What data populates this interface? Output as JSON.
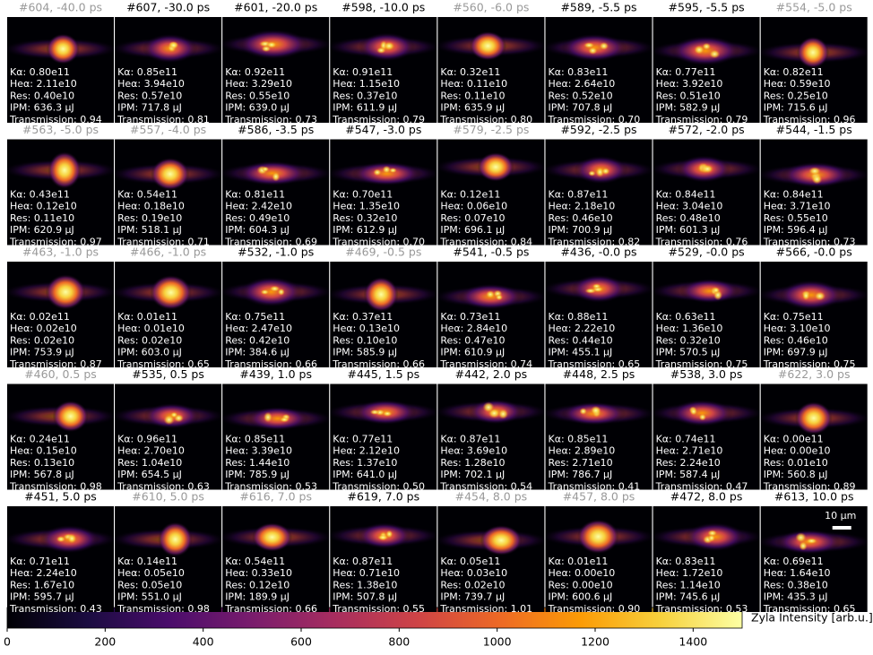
{
  "chart_data": {
    "type": "image-grid",
    "panels": [
      {
        "title": "#604, -40.0 ps",
        "muted": true,
        "lines": [
          "Kα: 0.80e11",
          "Heα: 2.11e10",
          "Res: 0.40e10",
          "IPM: 636.3 μJ",
          "Transmission: 0.94"
        ]
      },
      {
        "title": "#607, -30.0 ps",
        "muted": false,
        "lines": [
          "Kα: 0.85e11",
          "Heα: 3.94e10",
          "Res: 0.57e10",
          "IPM: 717.8 μJ",
          "Transmission: 0.81"
        ]
      },
      {
        "title": "#601, -20.0 ps",
        "muted": false,
        "lines": [
          "Kα: 0.92e11",
          "Heα: 3.29e10",
          "Res: 0.55e10",
          "IPM: 639.0 μJ",
          "Transmission: 0.73"
        ]
      },
      {
        "title": "#598, -10.0 ps",
        "muted": false,
        "lines": [
          "Kα: 0.91e11",
          "Heα: 1.15e10",
          "Res: 0.37e10",
          "IPM: 611.9 μJ",
          "Transmission: 0.79"
        ]
      },
      {
        "title": "#560, -6.0 ps",
        "muted": true,
        "lines": [
          "Kα: 0.32e11",
          "Heα: 0.11e10",
          "Res: 0.11e10",
          "IPM: 635.9 μJ",
          "Transmission: 0.80"
        ]
      },
      {
        "title": "#589, -5.5 ps",
        "muted": false,
        "lines": [
          "Kα: 0.83e11",
          "Heα: 2.64e10",
          "Res: 0.52e10",
          "IPM: 707.8 μJ",
          "Transmission: 0.70"
        ]
      },
      {
        "title": "#595, -5.5 ps",
        "muted": false,
        "lines": [
          "Kα: 0.77e11",
          "Heα: 3.92e10",
          "Res: 0.51e10",
          "IPM: 582.9 μJ",
          "Transmission: 0.79"
        ]
      },
      {
        "title": "#554, -5.0 ps",
        "muted": true,
        "lines": [
          "Kα: 0.82e11",
          "Heα: 0.59e10",
          "Res: 0.25e10",
          "IPM: 715.6 μJ",
          "Transmission: 0.96"
        ]
      },
      {
        "title": "#563, -5.0 ps",
        "muted": true,
        "lines": [
          "Kα: 0.43e11",
          "Heα: 0.12e10",
          "Res: 0.11e10",
          "IPM: 620.9 μJ",
          "Transmission: 0.97"
        ]
      },
      {
        "title": "#557, -4.0 ps",
        "muted": true,
        "lines": [
          "Kα: 0.54e11",
          "Heα: 0.18e10",
          "Res: 0.19e10",
          "IPM: 518.1 μJ",
          "Transmission: 0.71"
        ]
      },
      {
        "title": "#586, -3.5 ps",
        "muted": false,
        "lines": [
          "Kα: 0.81e11",
          "Heα: 2.42e10",
          "Res: 0.49e10",
          "IPM: 604.3 μJ",
          "Transmission: 0.69"
        ]
      },
      {
        "title": "#547, -3.0 ps",
        "muted": false,
        "lines": [
          "Kα: 0.70e11",
          "Heα: 1.35e10",
          "Res: 0.32e10",
          "IPM: 612.9 μJ",
          "Transmission: 0.70"
        ]
      },
      {
        "title": "#579, -2.5 ps",
        "muted": true,
        "lines": [
          "Kα: 0.12e11",
          "Heα: 0.06e10",
          "Res: 0.07e10",
          "IPM: 696.1 μJ",
          "Transmission: 0.84"
        ]
      },
      {
        "title": "#592, -2.5 ps",
        "muted": false,
        "lines": [
          "Kα: 0.87e11",
          "Heα: 2.18e10",
          "Res: 0.46e10",
          "IPM: 700.9 μJ",
          "Transmission: 0.82"
        ]
      },
      {
        "title": "#572, -2.0 ps",
        "muted": false,
        "lines": [
          "Kα: 0.84e11",
          "Heα: 3.04e10",
          "Res: 0.48e10",
          "IPM: 601.3 μJ",
          "Transmission: 0.76"
        ]
      },
      {
        "title": "#544, -1.5 ps",
        "muted": false,
        "lines": [
          "Kα: 0.84e11",
          "Heα: 3.71e10",
          "Res: 0.55e10",
          "IPM: 596.4 μJ",
          "Transmission: 0.73"
        ]
      },
      {
        "title": "#463, -1.0 ps",
        "muted": true,
        "lines": [
          "Kα: 0.02e11",
          "Heα: 0.02e10",
          "Res: 0.02e10",
          "IPM: 753.9 μJ",
          "Transmission: 0.87"
        ]
      },
      {
        "title": "#466, -1.0 ps",
        "muted": true,
        "lines": [
          "Kα: 0.01e11",
          "Heα: 0.01e10",
          "Res: 0.02e10",
          "IPM: 603.0 μJ",
          "Transmission: 0.65"
        ]
      },
      {
        "title": "#532, -1.0 ps",
        "muted": false,
        "lines": [
          "Kα: 0.75e11",
          "Heα: 2.47e10",
          "Res: 0.42e10",
          "IPM: 384.6 μJ",
          "Transmission: 0.66"
        ]
      },
      {
        "title": "#469, -0.5 ps",
        "muted": true,
        "lines": [
          "Kα: 0.37e11",
          "Heα: 0.13e10",
          "Res: 0.10e10",
          "IPM: 585.9 μJ",
          "Transmission: 0.66"
        ]
      },
      {
        "title": "#541, -0.5 ps",
        "muted": false,
        "lines": [
          "Kα: 0.73e11",
          "Heα: 2.84e10",
          "Res: 0.47e10",
          "IPM: 610.9 μJ",
          "Transmission: 0.74"
        ]
      },
      {
        "title": "#436, -0.0 ps",
        "muted": false,
        "lines": [
          "Kα: 0.88e11",
          "Heα: 2.22e10",
          "Res: 0.44e10",
          "IPM: 455.1 μJ",
          "Transmission: 0.65"
        ]
      },
      {
        "title": "#529, -0.0 ps",
        "muted": false,
        "lines": [
          "Kα: 0.63e11",
          "Heα: 1.36e10",
          "Res: 0.32e10",
          "IPM: 570.5 μJ",
          "Transmission: 0.75"
        ]
      },
      {
        "title": "#566, -0.0 ps",
        "muted": false,
        "lines": [
          "Kα: 0.75e11",
          "Heα: 3.10e10",
          "Res: 0.46e10",
          "IPM: 697.9 μJ",
          "Transmission: 0.75"
        ]
      },
      {
        "title": "#460, 0.5 ps",
        "muted": true,
        "lines": [
          "Kα: 0.24e11",
          "Heα: 0.15e10",
          "Res: 0.13e10",
          "IPM: 567.8 μJ",
          "Transmission: 0.98"
        ]
      },
      {
        "title": "#535, 0.5 ps",
        "muted": false,
        "lines": [
          "Kα: 0.96e11",
          "Heα: 2.70e10",
          "Res: 1.04e10",
          "IPM: 654.5 μJ",
          "Transmission: 0.63"
        ]
      },
      {
        "title": "#439, 1.0 ps",
        "muted": false,
        "lines": [
          "Kα: 0.85e11",
          "Heα: 3.39e10",
          "Res: 1.44e10",
          "IPM: 785.9 μJ",
          "Transmission: 0.53"
        ]
      },
      {
        "title": "#445, 1.5 ps",
        "muted": false,
        "lines": [
          "Kα: 0.77e11",
          "Heα: 2.12e10",
          "Res: 1.37e10",
          "IPM: 641.0 μJ",
          "Transmission: 0.50"
        ]
      },
      {
        "title": "#442, 2.0 ps",
        "muted": false,
        "lines": [
          "Kα: 0.87e11",
          "Heα: 3.69e10",
          "Res: 1.28e10",
          "IPM: 702.1 μJ",
          "Transmission: 0.54"
        ]
      },
      {
        "title": "#448, 2.5 ps",
        "muted": false,
        "lines": [
          "Kα: 0.85e11",
          "Heα: 2.89e10",
          "Res: 2.71e10",
          "IPM: 786.7 μJ",
          "Transmission: 0.41"
        ]
      },
      {
        "title": "#538, 3.0 ps",
        "muted": false,
        "lines": [
          "Kα: 0.74e11",
          "Heα: 2.71e10",
          "Res: 2.24e10",
          "IPM: 587.4 μJ",
          "Transmission: 0.47"
        ]
      },
      {
        "title": "#622, 3.0 ps",
        "muted": true,
        "lines": [
          "Kα: 0.00e11",
          "Heα: 0.00e10",
          "Res: 0.01e10",
          "IPM: 560.8 μJ",
          "Transmission: 0.89"
        ]
      },
      {
        "title": "#451, 5.0 ps",
        "muted": false,
        "lines": [
          "Kα: 0.71e11",
          "Heα: 2.24e10",
          "Res: 1.67e10",
          "IPM: 595.7 μJ",
          "Transmission: 0.43"
        ]
      },
      {
        "title": "#610, 5.0 ps",
        "muted": true,
        "lines": [
          "Kα: 0.14e11",
          "Heα: 0.05e10",
          "Res: 0.05e10",
          "IPM: 551.0 μJ",
          "Transmission: 0.98"
        ]
      },
      {
        "title": "#616, 7.0 ps",
        "muted": true,
        "lines": [
          "Kα: 0.54e11",
          "Heα: 0.33e10",
          "Res: 0.12e10",
          "IPM: 189.9 μJ",
          "Transmission: 0.66"
        ]
      },
      {
        "title": "#619, 7.0 ps",
        "muted": false,
        "lines": [
          "Kα: 0.87e11",
          "Heα: 0.71e10",
          "Res: 1.38e10",
          "IPM: 507.8 μJ",
          "Transmission: 0.55"
        ]
      },
      {
        "title": "#454, 8.0 ps",
        "muted": true,
        "lines": [
          "Kα: 0.05e11",
          "Heα: 0.03e10",
          "Res: 0.02e10",
          "IPM: 739.7 μJ",
          "Transmission: 1.01"
        ]
      },
      {
        "title": "#457, 8.0 ps",
        "muted": true,
        "lines": [
          "Kα: 0.01e11",
          "Heα: 0.00e10",
          "Res: 0.00e10",
          "IPM: 600.6 μJ",
          "Transmission: 0.90"
        ]
      },
      {
        "title": "#472, 8.0 ps",
        "muted": false,
        "lines": [
          "Kα: 0.83e11",
          "Heα: 1.72e10",
          "Res: 1.14e10",
          "IPM: 745.6 μJ",
          "Transmission: 0.53"
        ]
      },
      {
        "title": "#613, 10.0 ps",
        "muted": false,
        "lines": [
          "Kα: 0.69e11",
          "Heα: 1.64e10",
          "Res: 0.38e10",
          "IPM: 435.3 μJ",
          "Transmission: 0.65"
        ]
      }
    ],
    "scale_bar": "10 μm",
    "colorbar": {
      "label": "Zyla Intensity [arb.u.]",
      "xlim": [
        0,
        1500
      ],
      "xticks": [
        0,
        200,
        400,
        600,
        800,
        1000,
        1200,
        1400
      ]
    }
  }
}
